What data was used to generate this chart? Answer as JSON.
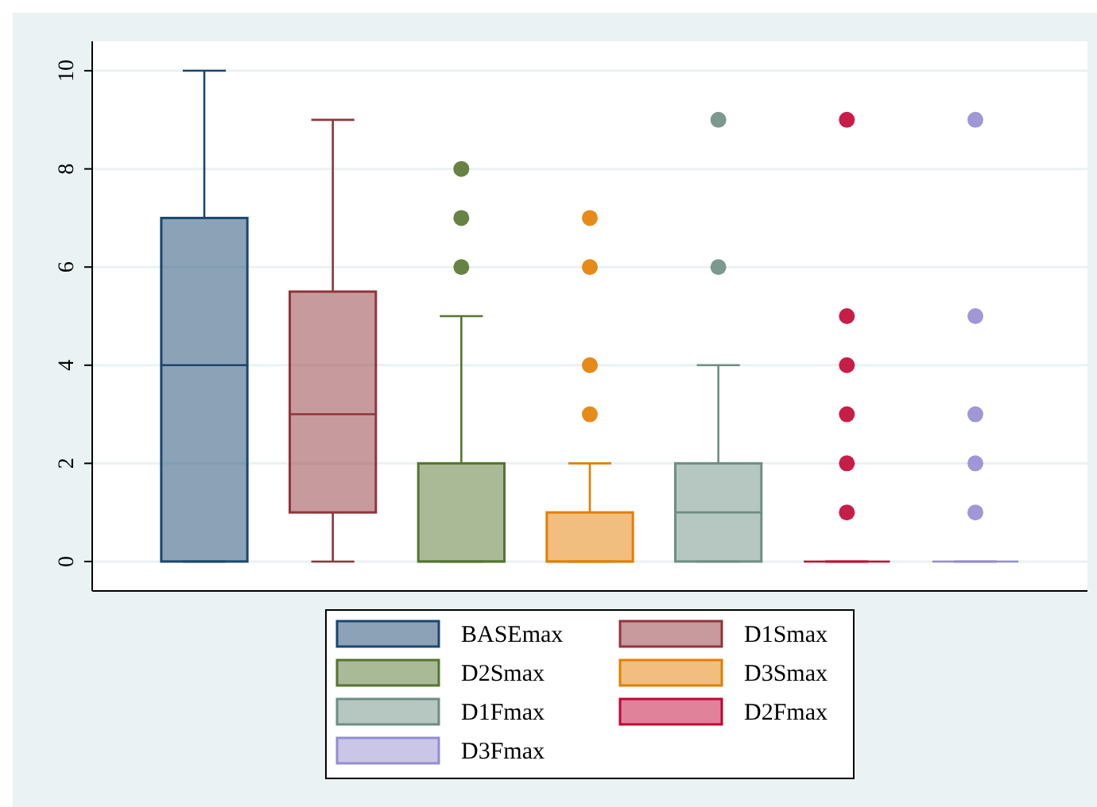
{
  "chart_data": {
    "type": "box",
    "categories": [
      null
    ],
    "ylim": [
      -0.6,
      10.6
    ],
    "yticks": [
      0,
      2,
      4,
      6,
      8,
      10
    ],
    "grid": "y",
    "legend": "bottom",
    "tick_labels": "y",
    "series": [
      {
        "name": "BASEmax",
        "color": "#1a476f",
        "boxes": [
          {
            "low": 0,
            "q1": 0,
            "median": 4,
            "q3": 7,
            "high": 10
          }
        ]
      },
      {
        "name": "D1Smax",
        "color": "#90353b",
        "boxes": [
          {
            "low": 0,
            "q1": 1,
            "median": 3,
            "q3": 5.5,
            "high": 9
          }
        ]
      },
      {
        "name": "D2Smax",
        "color": "#55752f",
        "boxes": [
          {
            "low": 0,
            "q1": 0,
            "median": 0,
            "q3": 2,
            "high": 5,
            "outliers": [
              6,
              7,
              8
            ]
          }
        ]
      },
      {
        "name": "D3Smax",
        "color": "#e37e00",
        "boxes": [
          {
            "low": 0,
            "q1": 0,
            "median": 0,
            "q3": 1,
            "high": 2,
            "outliers": [
              3,
              4,
              6,
              7
            ]
          }
        ]
      },
      {
        "name": "D1Fmax",
        "color": "#6e8e84",
        "boxes": [
          {
            "low": 0,
            "q1": 0,
            "median": 1,
            "q3": 2,
            "high": 4,
            "outliers": [
              6,
              9
            ]
          }
        ]
      },
      {
        "name": "D2Fmax",
        "color": "#c10534",
        "boxes": [
          {
            "low": 0,
            "q1": 0,
            "median": 0,
            "q3": 0,
            "high": 0,
            "outliers": [
              1,
              2,
              3,
              4,
              5,
              9
            ]
          }
        ]
      },
      {
        "name": "D3Fmax",
        "color": "#938dd2",
        "boxes": [
          {
            "low": 0,
            "q1": 0,
            "median": 0,
            "q3": 0,
            "high": 0,
            "outliers": [
              1,
              2,
              3,
              5,
              9
            ]
          }
        ]
      }
    ]
  }
}
